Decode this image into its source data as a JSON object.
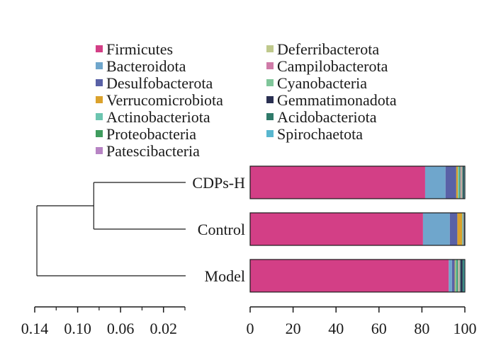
{
  "chart_data": {
    "type": "bar",
    "orientation": "horizontal",
    "stacked": true,
    "categories": [
      "CDPs-H",
      "Control",
      "Model"
    ],
    "series": [
      {
        "name": "Firmicutes",
        "color": "#d33f86",
        "values": [
          81.5,
          80.5,
          92.5
        ]
      },
      {
        "name": "Bacteroidota",
        "color": "#6fa6cc",
        "values": [
          9.5,
          12.5,
          1.5
        ]
      },
      {
        "name": "Desulfobacterota",
        "color": "#5961a6",
        "values": [
          5.0,
          3.5,
          1.3
        ]
      },
      {
        "name": "Verrucomicrobiota",
        "color": "#dba22c",
        "values": [
          0.8,
          2.2,
          0.3
        ]
      },
      {
        "name": "Actinobacteriota",
        "color": "#6cc5b0",
        "values": [
          0.6,
          0.2,
          0.6
        ]
      },
      {
        "name": "Proteobacteria",
        "color": "#3f9c5e",
        "values": [
          0.5,
          0.2,
          0.6
        ]
      },
      {
        "name": "Patescibacteria",
        "color": "#b784c4",
        "values": [
          0.3,
          0.1,
          0.2
        ]
      },
      {
        "name": "Deferribacterota",
        "color": "#bfc98c",
        "values": [
          0.3,
          0.1,
          0.3
        ]
      },
      {
        "name": "Campilobacterota",
        "color": "#cf7ba8",
        "values": [
          0.2,
          0.1,
          0.2
        ]
      },
      {
        "name": "Cyanobacteria",
        "color": "#80c69a",
        "values": [
          0.3,
          0.1,
          0.4
        ]
      },
      {
        "name": "Gemmatimonadota",
        "color": "#2a3052",
        "values": [
          0.4,
          0.3,
          1.0
        ]
      },
      {
        "name": "Acidobacteriota",
        "color": "#2f7a6a",
        "values": [
          0.3,
          0.1,
          0.6
        ]
      },
      {
        "name": "Spirochaetota",
        "color": "#59b7cf",
        "values": [
          0.3,
          0.1,
          0.5
        ]
      }
    ],
    "xlim": [
      0,
      100
    ],
    "xticks": [
      "0",
      "20",
      "40",
      "60",
      "80",
      "100"
    ],
    "legend": {
      "placement": "top",
      "columns": 2
    },
    "dendrogram": {
      "axis_range": [
        0.14,
        0.0
      ],
      "ticks": [
        "0.14",
        "0.10",
        "0.06",
        "0.02"
      ],
      "merges": [
        {
          "members": [
            "CDPs-H",
            "Control"
          ],
          "height": 0.085
        },
        {
          "members": [
            "CDPs-H",
            "Control",
            "Model"
          ],
          "height": 0.138
        }
      ]
    }
  }
}
